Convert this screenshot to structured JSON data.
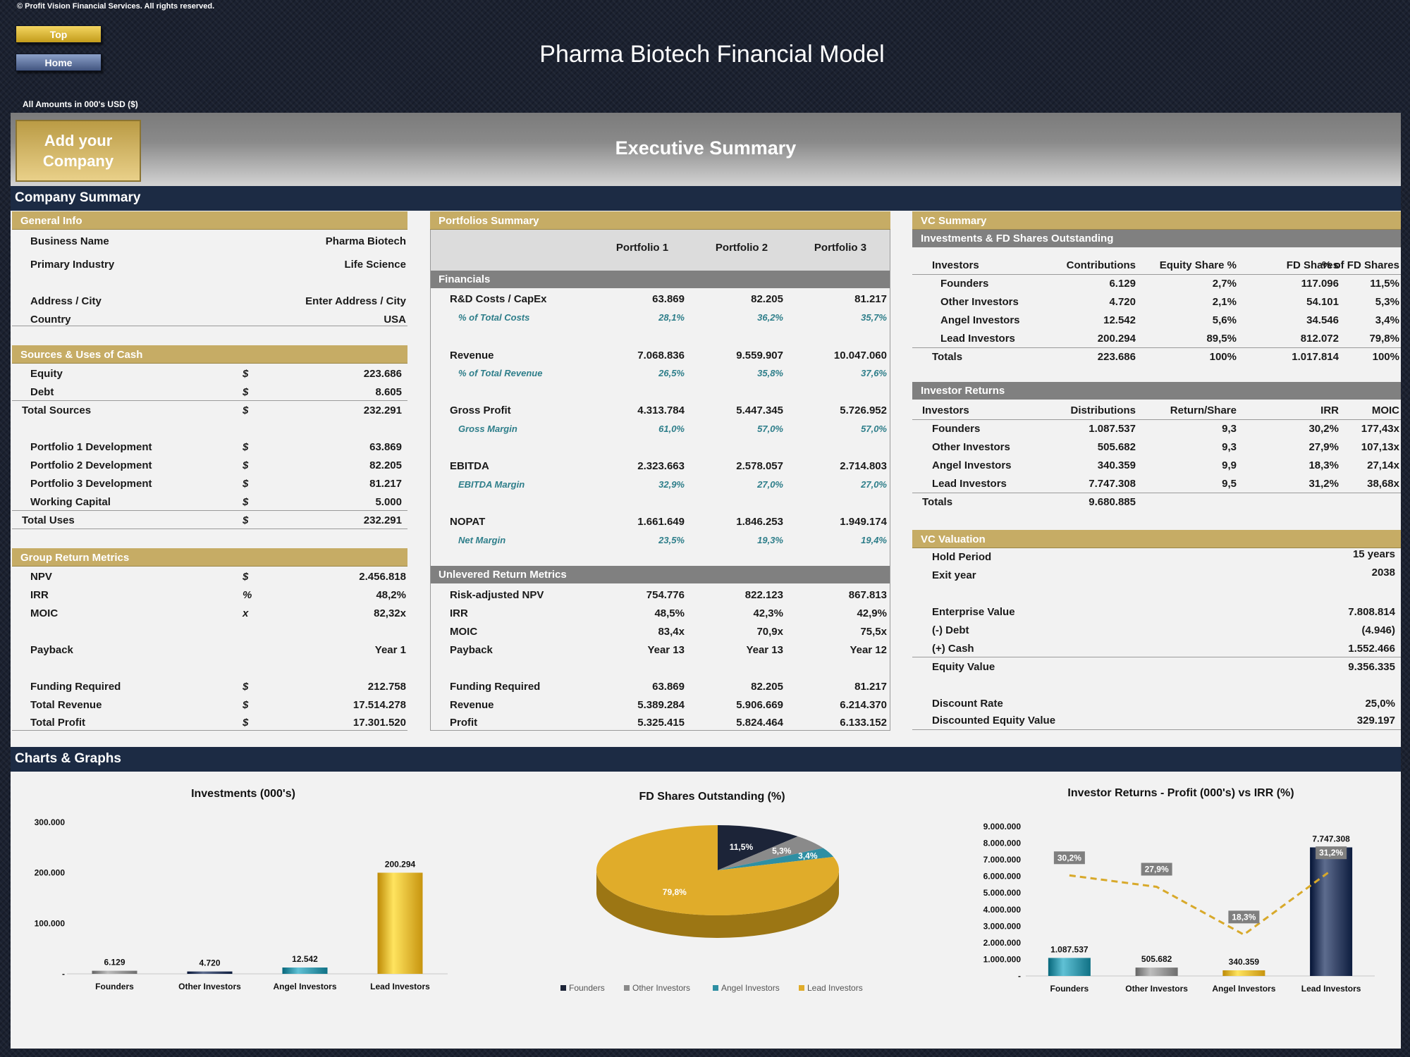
{
  "copyright": "© Profit Vision Financial Services. All rights reserved.",
  "buttons": {
    "top": "Top",
    "home": "Home"
  },
  "title": "Pharma Biotech Financial Model",
  "amounts_note": "All Amounts in 000's USD ($)",
  "company_box": "Add your Company",
  "exec_title": "Executive Summary",
  "company_summary": "Company Summary",
  "charts_graphs": "Charts & Graphs",
  "general_info": {
    "header": "General Info",
    "rows": [
      [
        "Business Name",
        "Pharma Biotech"
      ],
      [
        "Primary Industry",
        "Life Science"
      ],
      [
        "Address / City",
        "Enter Address / City"
      ],
      [
        "Country",
        "USA"
      ]
    ]
  },
  "sources_uses": {
    "header": "Sources & Uses of Cash",
    "rows": [
      [
        "Equity",
        "$",
        "223.686"
      ],
      [
        "Debt",
        "$",
        "8.605"
      ],
      [
        "Total Sources",
        "$",
        "232.291"
      ],
      [
        "Portfolio 1 Development",
        "$",
        "63.869"
      ],
      [
        "Portfolio 2 Development",
        "$",
        "82.205"
      ],
      [
        "Portfolio 3 Development",
        "$",
        "81.217"
      ],
      [
        "Working Capital",
        "$",
        "5.000"
      ],
      [
        "Total Uses",
        "$",
        "232.291"
      ]
    ]
  },
  "group_return": {
    "header": "Group Return Metrics",
    "rows": [
      [
        "NPV",
        "$",
        "2.456.818"
      ],
      [
        "IRR",
        "%",
        "48,2%"
      ],
      [
        "MOIC",
        "x",
        "82,32x"
      ],
      [
        "Payback",
        "",
        "Year 1"
      ],
      [
        "Funding Required",
        "$",
        "212.758"
      ],
      [
        "Total Revenue",
        "$",
        "17.514.278"
      ],
      [
        "Total Profit",
        "$",
        "17.301.520"
      ]
    ]
  },
  "portfolios": {
    "header": "Portfolios Summary",
    "cols": [
      "Portfolio 1",
      "Portfolio 2",
      "Portfolio 3"
    ],
    "financials_header": "Financials",
    "rows": [
      [
        "R&D Costs / CapEx",
        "63.869",
        "82.205",
        "81.217"
      ],
      [
        "% of Total Costs",
        "28,1%",
        "36,2%",
        "35,7%"
      ],
      [
        "Revenue",
        "7.068.836",
        "9.559.907",
        "10.047.060"
      ],
      [
        "% of Total Revenue",
        "26,5%",
        "35,8%",
        "37,6%"
      ],
      [
        "Gross Profit",
        "4.313.784",
        "5.447.345",
        "5.726.952"
      ],
      [
        "Gross Margin",
        "61,0%",
        "57,0%",
        "57,0%"
      ],
      [
        "EBITDA",
        "2.323.663",
        "2.578.057",
        "2.714.803"
      ],
      [
        "EBITDA Margin",
        "32,9%",
        "27,0%",
        "27,0%"
      ],
      [
        "NOPAT",
        "1.661.649",
        "1.846.253",
        "1.949.174"
      ],
      [
        "Net Margin",
        "23,5%",
        "19,3%",
        "19,4%"
      ]
    ],
    "unlevered_header": "Unlevered Return Metrics",
    "unlevered": [
      [
        "Risk-adjusted NPV",
        "754.776",
        "822.123",
        "867.813"
      ],
      [
        "IRR",
        "48,5%",
        "42,3%",
        "42,9%"
      ],
      [
        "MOIC",
        "83,4x",
        "70,9x",
        "75,5x"
      ],
      [
        "Payback",
        "Year 13",
        "Year 13",
        "Year 12"
      ],
      [
        "Funding Required",
        "63.869",
        "82.205",
        "81.217"
      ],
      [
        "Revenue",
        "5.389.284",
        "5.906.669",
        "6.214.370"
      ],
      [
        "Profit",
        "5.325.415",
        "5.824.464",
        "6.133.152"
      ]
    ]
  },
  "vc_summary": {
    "header": "VC Summary",
    "inv_header": "Investments & FD Shares Outstanding",
    "inv_cols": [
      "Investors",
      "Contributions",
      "Equity Share %",
      "FD Shares",
      "% of FD Shares"
    ],
    "inv_rows": [
      [
        "Founders",
        "6.129",
        "2,7%",
        "117.096",
        "11,5%"
      ],
      [
        "Other Investors",
        "4.720",
        "2,1%",
        "54.101",
        "5,3%"
      ],
      [
        "Angel Investors",
        "12.542",
        "5,6%",
        "34.546",
        "3,4%"
      ],
      [
        "Lead Investors",
        "200.294",
        "89,5%",
        "812.072",
        "79,8%"
      ],
      [
        "Totals",
        "223.686",
        "100%",
        "1.017.814",
        "100%"
      ]
    ],
    "ret_header": "Investor Returns",
    "ret_cols": [
      "Investors",
      "Distributions",
      "Return/Share",
      "IRR",
      "MOIC"
    ],
    "ret_rows": [
      [
        "Founders",
        "1.087.537",
        "9,3",
        "30,2%",
        "177,43x"
      ],
      [
        "Other Investors",
        "505.682",
        "9,3",
        "27,9%",
        "107,13x"
      ],
      [
        "Angel Investors",
        "340.359",
        "9,9",
        "18,3%",
        "27,14x"
      ],
      [
        "Lead Investors",
        "7.747.308",
        "9,5",
        "31,2%",
        "38,68x"
      ],
      [
        "Totals",
        "9.680.885",
        "",
        "",
        ""
      ]
    ]
  },
  "vc_valuation": {
    "header": "VC Valuation",
    "rows": [
      [
        "Hold Period",
        "15 years"
      ],
      [
        "Exit year",
        "2038"
      ],
      [
        "Enterprise Value",
        "7.808.814"
      ],
      [
        "(-) Debt",
        "(4.946)"
      ],
      [
        "(+) Cash",
        "1.552.466"
      ],
      [
        "Equity Value",
        "9.356.335"
      ],
      [
        "Discount Rate",
        "25,0%"
      ],
      [
        "Discounted Equity Value",
        "329.197"
      ]
    ]
  },
  "chart_data": [
    {
      "type": "bar",
      "title": "Investments (000's)",
      "categories": [
        "Founders",
        "Other Investors",
        "Angel Investors",
        "Lead Investors"
      ],
      "values": [
        6129,
        4720,
        12542,
        200294
      ],
      "value_labels": [
        "6.129",
        "4.720",
        "12.542",
        "200.294"
      ],
      "yticks": [
        "300.000",
        "200.000",
        "100.000",
        "-"
      ],
      "ylim": [
        0,
        300000
      ],
      "colors": [
        "#8c8c8c",
        "#2b3a5c",
        "#2e8fa3",
        "#e5b22d"
      ]
    },
    {
      "type": "pie",
      "title": "FD Shares Outstanding (%)",
      "categories": [
        "Founders",
        "Other Investors",
        "Angel Investors",
        "Lead Investors"
      ],
      "values": [
        11.5,
        5.3,
        3.4,
        79.8
      ],
      "value_labels": [
        "11,5%",
        "5,3%",
        "3,4%",
        "79,8%"
      ],
      "colors": [
        "#1c2438",
        "#8a8a8a",
        "#2e8fa3",
        "#e0ac2a"
      ]
    },
    {
      "type": "bar",
      "title": "Investor Returns - Profit (000's) vs IRR (%)",
      "categories": [
        "Founders",
        "Other Investors",
        "Angel Investors",
        "Lead Investors"
      ],
      "series": [
        {
          "values": [
            1087537,
            505682,
            340359,
            7747308
          ],
          "value_labels": [
            "1.087.537",
            "505.682",
            "340.359",
            "7.747.308"
          ]
        },
        {
          "values": [
            30.2,
            27.9,
            18.3,
            31.2
          ],
          "value_labels": [
            "30,2%",
            "27,9%",
            "18,3%",
            "31,2%"
          ]
        }
      ],
      "yticks": [
        "9.000.000",
        "8.000.000",
        "7.000.000",
        "6.000.000",
        "5.000.000",
        "4.000.000",
        "3.000.000",
        "2.000.000",
        "1.000.000",
        "-"
      ],
      "ylim": [
        0,
        9000000
      ],
      "colors": [
        "#2e8fa3",
        "#8c8c8c",
        "#e5b22d",
        "#2b3a5c"
      ],
      "line_color": "#d8a92a"
    }
  ]
}
